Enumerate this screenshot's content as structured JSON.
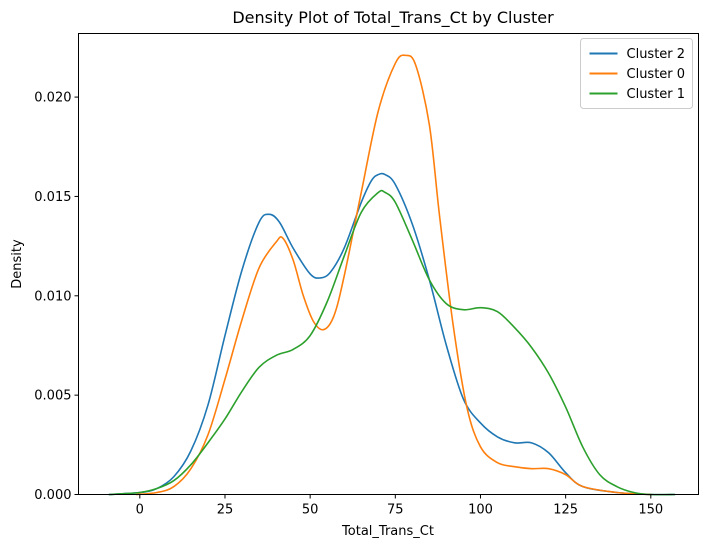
{
  "chart_data": {
    "type": "line",
    "title": "Density Plot of Total_Trans_Ct by Cluster",
    "xlabel": "Total_Trans_Ct",
    "ylabel": "Density",
    "xlim": [
      -18,
      164
    ],
    "ylim": [
      0,
      0.0232
    ],
    "xticks": [
      0,
      25,
      50,
      75,
      100,
      125,
      150
    ],
    "xtick_labels": [
      "0",
      "25",
      "50",
      "75",
      "100",
      "125",
      "150"
    ],
    "yticks": [
      0,
      0.005,
      0.01,
      0.015,
      0.02
    ],
    "ytick_labels": [
      "0.000",
      "0.005",
      "0.010",
      "0.015",
      "0.020"
    ],
    "grid": false,
    "legend_position": "top-right",
    "series": [
      {
        "name": "Cluster 2",
        "color": "#1f77b4",
        "points": [
          [
            -9,
            0
          ],
          [
            0,
            0.0001
          ],
          [
            5,
            0.0003
          ],
          [
            10,
            0.0009
          ],
          [
            15,
            0.0022
          ],
          [
            20,
            0.0045
          ],
          [
            25,
            0.008
          ],
          [
            30,
            0.0113
          ],
          [
            35,
            0.0137
          ],
          [
            38,
            0.0141
          ],
          [
            41,
            0.0137
          ],
          [
            45,
            0.0124
          ],
          [
            50,
            0.0111
          ],
          [
            53,
            0.0109
          ],
          [
            56,
            0.0112
          ],
          [
            60,
            0.0124
          ],
          [
            65,
            0.0147
          ],
          [
            68,
            0.0158
          ],
          [
            70,
            0.0161
          ],
          [
            72,
            0.0161
          ],
          [
            75,
            0.0156
          ],
          [
            80,
            0.0136
          ],
          [
            85,
            0.0108
          ],
          [
            90,
            0.0075
          ],
          [
            95,
            0.0048
          ],
          [
            100,
            0.0036
          ],
          [
            105,
            0.0029
          ],
          [
            110,
            0.0026
          ],
          [
            115,
            0.0026
          ],
          [
            120,
            0.0021
          ],
          [
            125,
            0.0011
          ],
          [
            130,
            0.0004
          ],
          [
            140,
            0.0001
          ],
          [
            150,
            0
          ],
          [
            157,
            0
          ]
        ]
      },
      {
        "name": "Cluster 0",
        "color": "#ff7f0e",
        "points": [
          [
            -1,
            0
          ],
          [
            5,
            0.0001
          ],
          [
            10,
            0.0004
          ],
          [
            15,
            0.0013
          ],
          [
            20,
            0.003
          ],
          [
            25,
            0.0058
          ],
          [
            30,
            0.0088
          ],
          [
            35,
            0.0114
          ],
          [
            40,
            0.0127
          ],
          [
            42,
            0.0129
          ],
          [
            45,
            0.0118
          ],
          [
            48,
            0.01
          ],
          [
            51,
            0.0087
          ],
          [
            54,
            0.0083
          ],
          [
            57,
            0.009
          ],
          [
            60,
            0.011
          ],
          [
            65,
            0.0152
          ],
          [
            70,
            0.0193
          ],
          [
            75,
            0.0217
          ],
          [
            78,
            0.0221
          ],
          [
            81,
            0.0216
          ],
          [
            85,
            0.0186
          ],
          [
            88,
            0.014
          ],
          [
            92,
            0.0085
          ],
          [
            96,
            0.0044
          ],
          [
            100,
            0.0024
          ],
          [
            105,
            0.0016
          ],
          [
            110,
            0.0014
          ],
          [
            115,
            0.0013
          ],
          [
            120,
            0.0013
          ],
          [
            125,
            0.001
          ],
          [
            130,
            0.0004
          ],
          [
            140,
            0.0001
          ],
          [
            150,
            0
          ]
        ]
      },
      {
        "name": "Cluster 1",
        "color": "#2ca02c",
        "points": [
          [
            -9,
            0
          ],
          [
            0,
            0.0001
          ],
          [
            5,
            0.0003
          ],
          [
            10,
            0.0007
          ],
          [
            15,
            0.0015
          ],
          [
            20,
            0.0026
          ],
          [
            25,
            0.0038
          ],
          [
            30,
            0.0052
          ],
          [
            35,
            0.0064
          ],
          [
            40,
            0.007
          ],
          [
            45,
            0.0073
          ],
          [
            50,
            0.008
          ],
          [
            55,
            0.0097
          ],
          [
            60,
            0.012
          ],
          [
            65,
            0.0142
          ],
          [
            70,
            0.0152
          ],
          [
            72,
            0.0152
          ],
          [
            75,
            0.0147
          ],
          [
            80,
            0.0128
          ],
          [
            85,
            0.0108
          ],
          [
            90,
            0.0096
          ],
          [
            95,
            0.0093
          ],
          [
            100,
            0.0094
          ],
          [
            105,
            0.0092
          ],
          [
            110,
            0.0084
          ],
          [
            115,
            0.0074
          ],
          [
            120,
            0.0061
          ],
          [
            125,
            0.0044
          ],
          [
            130,
            0.0024
          ],
          [
            135,
            0.001
          ],
          [
            140,
            0.0004
          ],
          [
            145,
            0.0001
          ],
          [
            150,
            0
          ],
          [
            157,
            0
          ]
        ]
      }
    ]
  }
}
